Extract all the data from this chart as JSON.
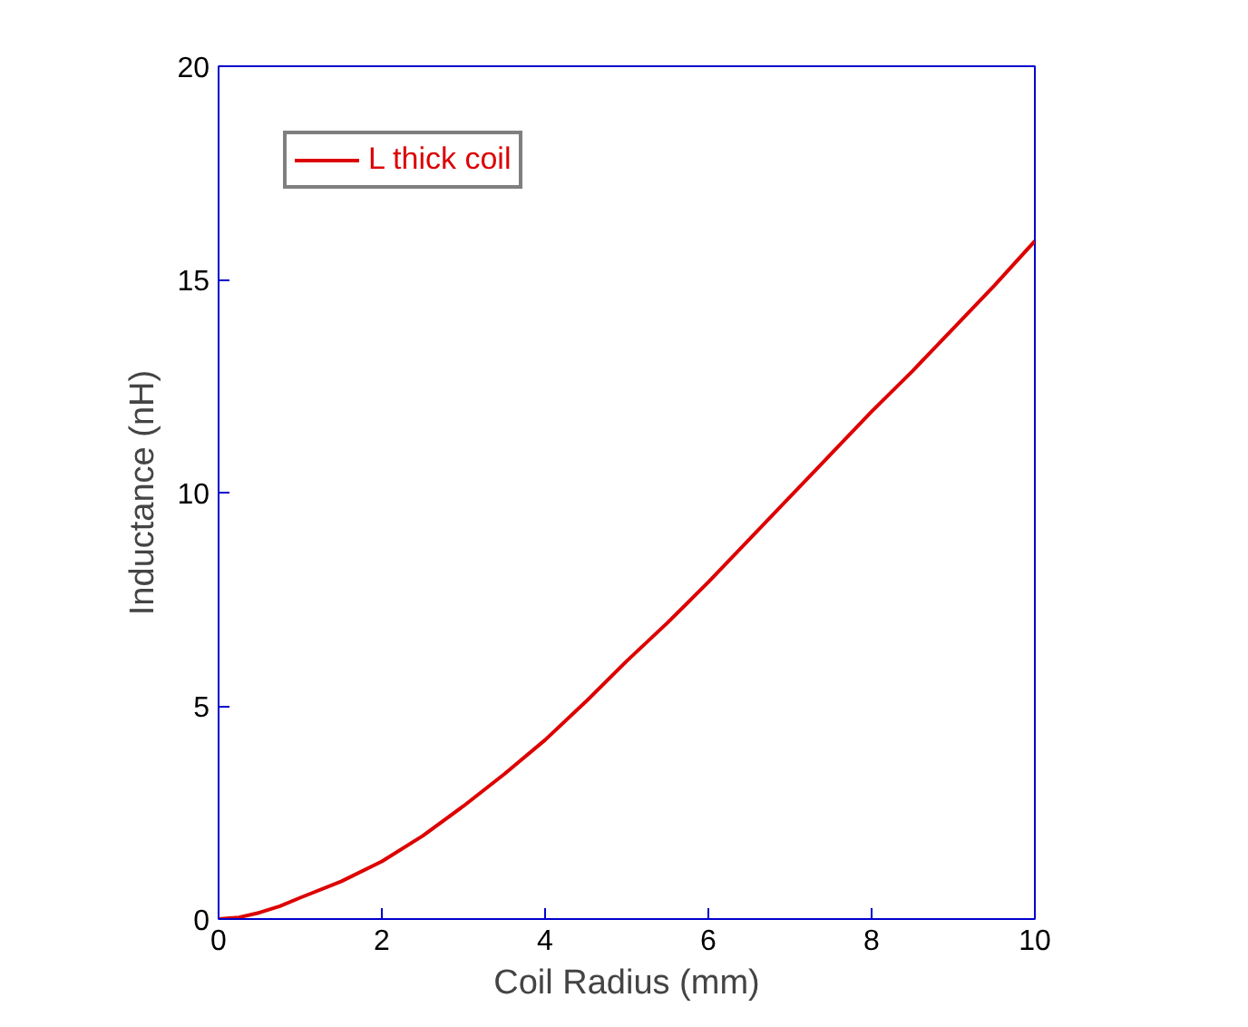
{
  "chart_data": {
    "type": "line",
    "xlabel": "Coil Radius (mm)",
    "ylabel": "Inductance (nH)",
    "xlim": [
      0,
      10
    ],
    "ylim": [
      0,
      20
    ],
    "xticks": [
      0,
      2,
      4,
      6,
      8,
      10
    ],
    "yticks": [
      0,
      5,
      10,
      15,
      20
    ],
    "grid": false,
    "legend": "top left",
    "marker": "none",
    "line_style": "solid",
    "series": [
      {
        "name": "L thick coil",
        "color": "#dd0000",
        "x": [
          0,
          0.25,
          0.5,
          0.75,
          1,
          1.5,
          2,
          2.5,
          3,
          3.5,
          4,
          4.5,
          5,
          5.5,
          6,
          6.5,
          7,
          7.5,
          8,
          8.5,
          9,
          9.5,
          10
        ],
        "values": [
          0,
          0.04,
          0.15,
          0.3,
          0.5,
          0.88,
          1.35,
          1.95,
          2.65,
          3.4,
          4.2,
          5.1,
          6.05,
          6.95,
          7.9,
          8.9,
          9.9,
          10.9,
          11.9,
          12.85,
          13.85,
          14.85,
          15.9
        ]
      }
    ]
  }
}
